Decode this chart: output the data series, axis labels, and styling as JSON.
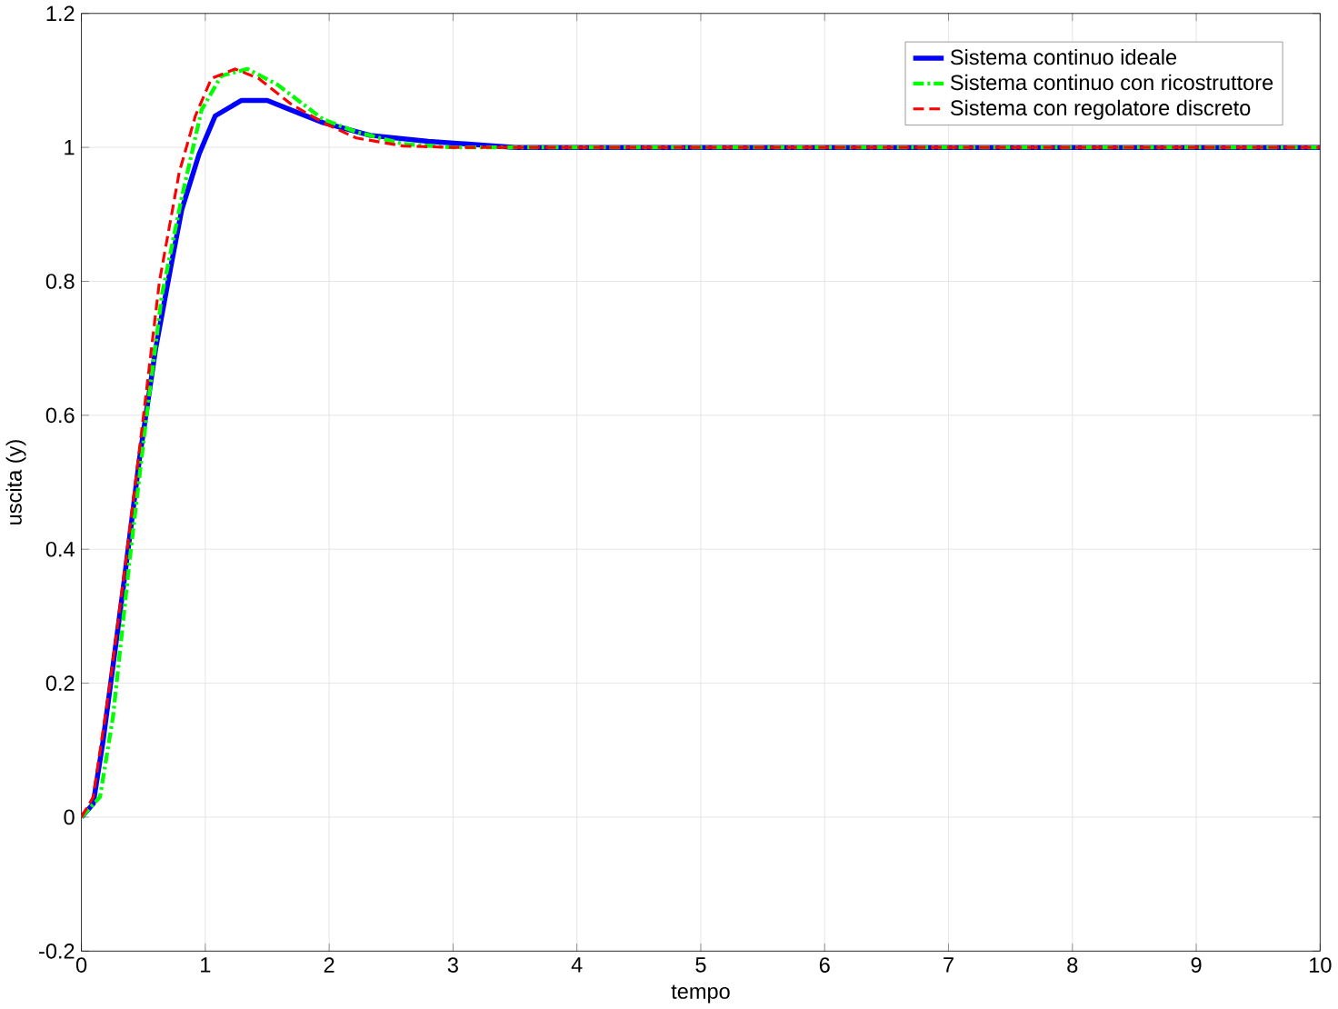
{
  "chart_data": {
    "type": "line",
    "xlabel": "tempo",
    "ylabel": "uscita (y)",
    "xlim": [
      0,
      10
    ],
    "ylim": [
      -0.2,
      1.2
    ],
    "xticks": [
      0,
      1,
      2,
      3,
      4,
      5,
      6,
      7,
      8,
      9,
      10
    ],
    "yticks": [
      -0.2,
      0,
      0.2,
      0.4,
      0.6,
      0.8,
      1,
      1.2
    ],
    "grid": true,
    "legend": "top right",
    "marker": "none",
    "series": [
      {
        "name": "Sistema continuo ideale",
        "color": "#0000ff",
        "line_style": "solid",
        "x": [
          0,
          0.095,
          0.175,
          0.335,
          0.468,
          0.6,
          0.73,
          0.81,
          0.95,
          1.08,
          1.29,
          1.5,
          1.69,
          1.95,
          2.33,
          2.8,
          3.5,
          10
        ],
        "values": [
          0,
          0.02,
          0.114,
          0.338,
          0.534,
          0.7,
          0.83,
          0.907,
          0.99,
          1.047,
          1.07,
          1.07,
          1.056,
          1.037,
          1.018,
          1.009,
          1.0,
          1.0
        ]
      },
      {
        "name": "Sistema continuo con ricostruttore",
        "color": "#00ff00",
        "line_style": "dashdot",
        "x": [
          0,
          0.15,
          0.255,
          0.39,
          0.52,
          0.65,
          0.81,
          0.97,
          1.13,
          1.34,
          1.58,
          1.95,
          2.22,
          2.6,
          3.0,
          10
        ],
        "values": [
          0,
          0.03,
          0.15,
          0.385,
          0.59,
          0.78,
          0.925,
          1.056,
          1.107,
          1.117,
          1.094,
          1.042,
          1.023,
          1.005,
          1.0,
          1.0
        ]
      },
      {
        "name": "Sistema con regolatore discreto",
        "color": "#ff0000",
        "line_style": "dashed",
        "x": [
          0,
          0.095,
          0.23,
          0.36,
          0.495,
          0.63,
          0.79,
          0.92,
          1.05,
          1.24,
          1.43,
          1.69,
          1.95,
          2.22,
          2.6,
          3.0,
          10
        ],
        "values": [
          0,
          0.03,
          0.198,
          0.385,
          0.59,
          0.8,
          0.963,
          1.047,
          1.103,
          1.117,
          1.103,
          1.065,
          1.037,
          1.014,
          1.002,
          1.0,
          1.0
        ]
      }
    ]
  }
}
